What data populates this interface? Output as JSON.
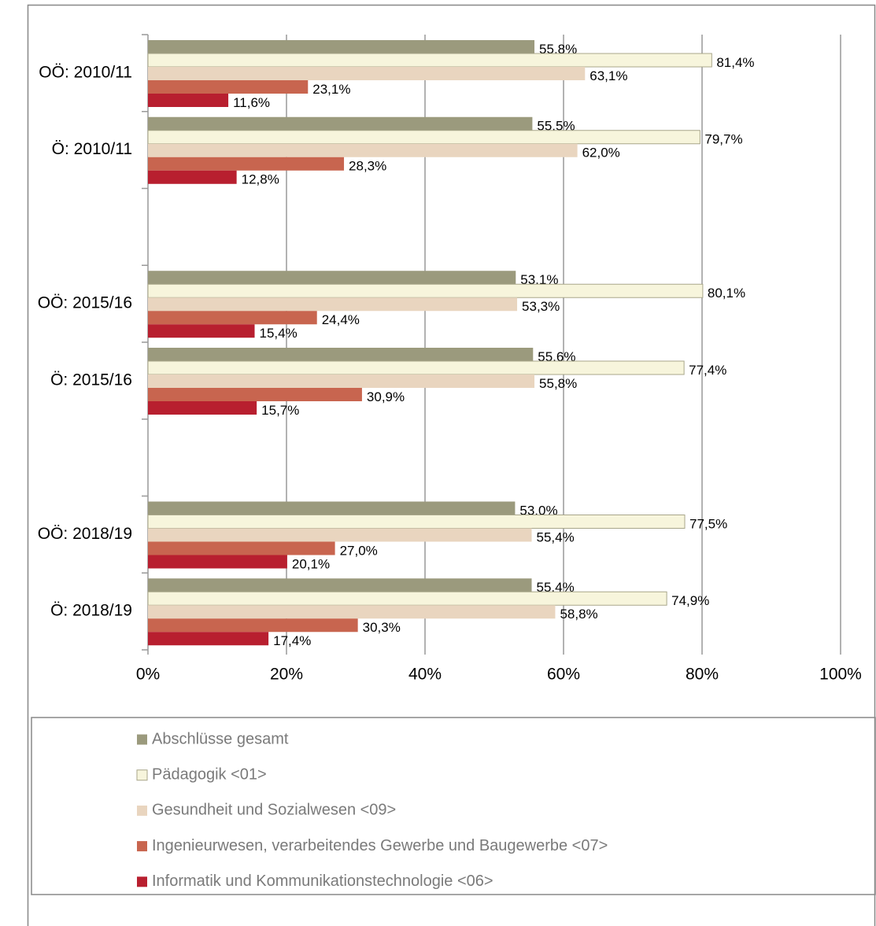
{
  "chart_data": {
    "type": "bar",
    "orientation": "horizontal",
    "categories": [
      "OÖ: 2010/11",
      "Ö: 2010/11",
      null,
      "OÖ: 2015/16",
      "Ö: 2015/16",
      null,
      "OÖ: 2018/19",
      "Ö: 2018/19"
    ],
    "series": [
      {
        "name": "Abschlüsse gesamt",
        "color": "#9b9a7d",
        "values": [
          55.8,
          55.5,
          null,
          53.1,
          55.6,
          null,
          53.0,
          55.4
        ],
        "value_labels": [
          "55,8%",
          "55,5%",
          null,
          "53,1%",
          "55,6%",
          null,
          "53,0%",
          "55,4%"
        ]
      },
      {
        "name": "Pädagogik <01>",
        "color": "#f7f5dc",
        "values": [
          81.4,
          79.7,
          null,
          80.1,
          77.4,
          null,
          77.5,
          74.9
        ],
        "value_labels": [
          "81,4%",
          "79,7%",
          null,
          "80,1%",
          "77,4%",
          null,
          "77,5%",
          "74,9%"
        ]
      },
      {
        "name": "Gesundheit und Sozialwesen <09>",
        "color": "#e9d5bf",
        "values": [
          63.1,
          62.0,
          null,
          53.3,
          55.8,
          null,
          55.4,
          58.8
        ],
        "value_labels": [
          "63,1%",
          "62,0%",
          null,
          "53,3%",
          "55,8%",
          null,
          "55,4%",
          "58,8%"
        ]
      },
      {
        "name": "Ingenieurwesen, verarbeitendes Gewerbe und Baugewerbe <07>",
        "color": "#c8654f",
        "values": [
          23.1,
          28.3,
          null,
          24.4,
          30.9,
          null,
          27.0,
          30.3
        ],
        "value_labels": [
          "23,1%",
          "28,3%",
          null,
          "24,4%",
          "30,9%",
          null,
          "27,0%",
          "30,3%"
        ]
      },
      {
        "name": "Informatik und Kommunikationstechnologie <06>",
        "color": "#b81f2f",
        "values": [
          11.6,
          12.8,
          null,
          15.4,
          15.7,
          null,
          20.1,
          17.4
        ],
        "value_labels": [
          "11,6%",
          "12,8%",
          null,
          "15,4%",
          "15,7%",
          null,
          "20,1%",
          "17,4%"
        ]
      }
    ],
    "xlim": [
      0,
      100
    ],
    "xticks": [
      {
        "value": 0,
        "label": "0%"
      },
      {
        "value": 20,
        "label": "20%"
      },
      {
        "value": 40,
        "label": "40%"
      },
      {
        "value": 60,
        "label": "60%"
      },
      {
        "value": 80,
        "label": "80%"
      },
      {
        "value": 100,
        "label": "100%"
      }
    ],
    "grid": true,
    "legend": "bottom"
  }
}
